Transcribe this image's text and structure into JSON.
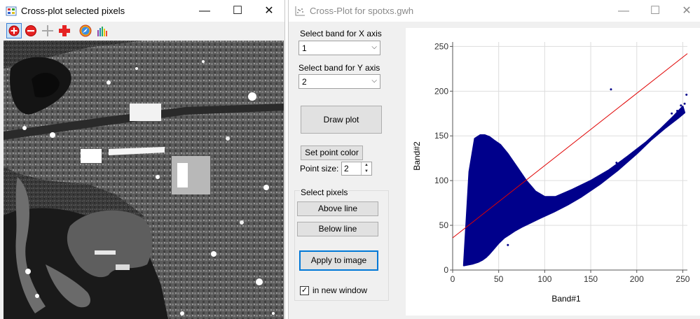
{
  "left_window": {
    "title": "Cross-plot selected pixels",
    "controls": {
      "minimize": "—",
      "maximize": "☐",
      "close": "✕"
    },
    "toolbar_icons": [
      "zoom-in-icon",
      "zoom-out-icon",
      "pan-cross-icon",
      "move-cross-icon",
      "compass-icon",
      "histogram-icon"
    ]
  },
  "right_window": {
    "title": "Cross-Plot for spotxs.gwh",
    "controls": {
      "minimize": "—",
      "maximize": "☐",
      "close": "✕"
    },
    "x_band_label": "Select band for X axis",
    "x_band_value": "1",
    "y_band_label": "Select band for Y axis",
    "y_band_value": "2",
    "draw_plot": "Draw plot",
    "set_point_color": "Set point color",
    "point_size_label": "Point size:",
    "point_size_value": "2",
    "select_pixels_label": "Select pixels",
    "above_line": "Above line",
    "below_line": "Below line",
    "apply_to_image": "Apply to image",
    "in_new_window": "in new window",
    "in_new_window_checked": true,
    "accent_color": "#0078d7"
  },
  "chart_data": {
    "type": "scatter",
    "xlabel": "Band#1",
    "ylabel": "Band#2",
    "xlim": [
      0,
      255
    ],
    "ylim": [
      0,
      255
    ],
    "xticks": [
      "0",
      "50",
      "100",
      "150",
      "200",
      "250"
    ],
    "yticks": [
      "0",
      "50",
      "100",
      "150",
      "200",
      "250"
    ],
    "point_color": "#00008b",
    "line_color": "#e00000",
    "line": {
      "x": [
        0,
        255
      ],
      "y": [
        36,
        242
      ]
    },
    "grid": true,
    "series": [
      {
        "polygon_x": [
          12,
          22,
          28,
          32,
          36,
          40,
          45,
          50,
          56,
          62,
          68,
          75,
          85,
          95,
          110,
          125,
          140,
          160,
          180,
          200,
          215,
          230,
          245,
          252,
          250,
          240,
          225,
          210,
          190,
          170,
          150,
          130,
          112,
          100,
          90,
          80,
          70,
          60,
          52,
          45,
          40,
          35,
          30,
          24,
          18,
          12
        ],
        "polygon_y": [
          5,
          7,
          9,
          11,
          14,
          18,
          24,
          30,
          36,
          40,
          44,
          48,
          53,
          58,
          65,
          73,
          82,
          96,
          112,
          130,
          145,
          158,
          170,
          176,
          183,
          172,
          157,
          143,
          127,
          112,
          100,
          90,
          82,
          82,
          88,
          100,
          115,
          130,
          140,
          145,
          149,
          151,
          151,
          147,
          110,
          5
        ],
        "outliers_x": [
          172,
          238,
          244,
          248,
          252,
          254,
          178,
          60
        ],
        "outliers_y": [
          202,
          175,
          178,
          184,
          186,
          196,
          120,
          28
        ]
      }
    ]
  }
}
